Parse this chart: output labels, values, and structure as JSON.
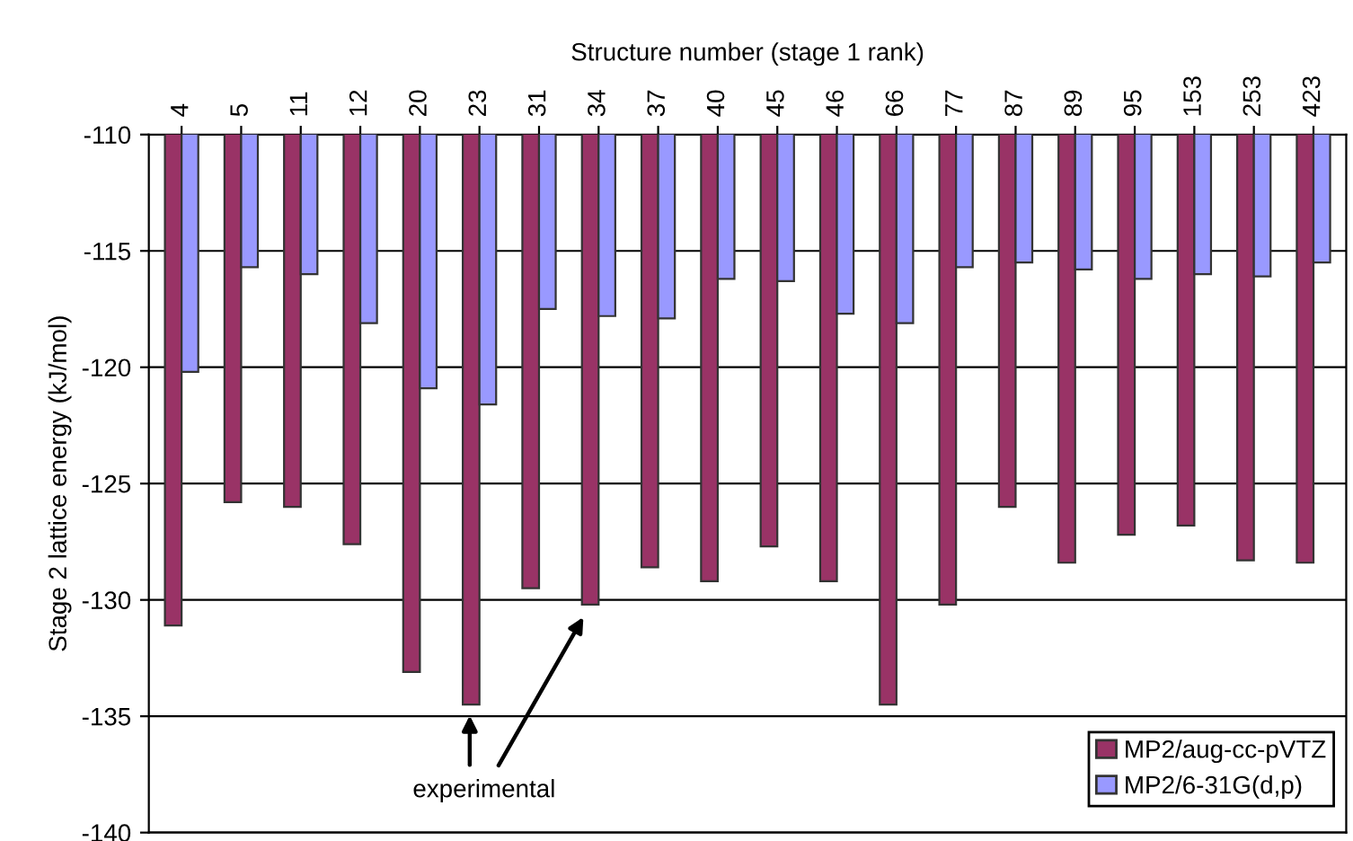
{
  "chart_data": {
    "type": "bar",
    "xlabel": "Structure number (stage 1 rank)",
    "ylabel": "Stage 2 lattice energy (kJ/mol)",
    "categories": [
      "4",
      "5",
      "11",
      "12",
      "20",
      "23",
      "31",
      "34",
      "37",
      "40",
      "45",
      "46",
      "66",
      "77",
      "87",
      "89",
      "95",
      "153",
      "253",
      "423"
    ],
    "series": [
      {
        "name": "MP2/aug-cc-pVTZ",
        "color": "#993366",
        "values": [
          -131.1,
          -125.8,
          -126.0,
          -127.6,
          -133.1,
          -134.5,
          -129.5,
          -130.2,
          -128.6,
          -129.2,
          -127.7,
          -129.2,
          -134.5,
          -130.2,
          -126.0,
          -128.4,
          -127.2,
          -126.8,
          -128.3,
          -128.4
        ]
      },
      {
        "name": "MP2/6-31G(d,p)",
        "color": "#9999ff",
        "values": [
          -120.2,
          -115.7,
          -116.0,
          -118.1,
          -120.9,
          -121.6,
          -117.5,
          -117.8,
          -117.9,
          -116.2,
          -116.3,
          -117.7,
          -118.1,
          -115.7,
          -115.5,
          -115.8,
          -116.2,
          -116.0,
          -116.1,
          -115.5
        ]
      }
    ],
    "ylim": [
      -140,
      -110
    ],
    "yticks": [
      -140,
      -135,
      -130,
      -125,
      -120,
      -115,
      -110
    ],
    "grid": "y",
    "legend": "bottom right",
    "annotations": [
      "experimental"
    ]
  }
}
